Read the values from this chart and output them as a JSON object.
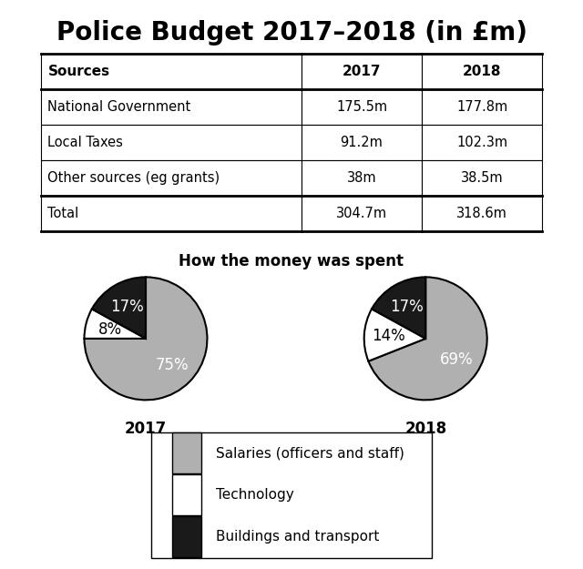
{
  "title": "Police Budget 2017–2018 (in £m)",
  "table": {
    "headers": [
      "Sources",
      "2017",
      "2018"
    ],
    "rows": [
      [
        "National Government",
        "175.5m",
        "177.8m"
      ],
      [
        "Local Taxes",
        "91.2m",
        "102.3m"
      ],
      [
        "Other sources (eg grants)",
        "38m",
        "38.5m"
      ],
      [
        "Total",
        "304.7m",
        "318.6m"
      ]
    ]
  },
  "pie_subtitle": "How the money was spent",
  "pie_2017": {
    "label": "2017",
    "values": [
      75,
      8,
      17
    ],
    "colors": [
      "#b0b0b0",
      "#ffffff",
      "#1a1a1a"
    ],
    "pct_labels": [
      "75%",
      "8%",
      "17%"
    ],
    "pct_colors": [
      "white",
      "black",
      "white"
    ],
    "startangle": 90
  },
  "pie_2018": {
    "label": "2018",
    "values": [
      69,
      14,
      17
    ],
    "colors": [
      "#b0b0b0",
      "#ffffff",
      "#1a1a1a"
    ],
    "pct_labels": [
      "69%",
      "14%",
      "17%"
    ],
    "pct_colors": [
      "white",
      "black",
      "white"
    ],
    "startangle": 90
  },
  "legend_items": [
    {
      "label": "Salaries (officers and staff)",
      "color": "#b0b0b0"
    },
    {
      "label": "Technology",
      "color": "#ffffff"
    },
    {
      "label": "Buildings and transport",
      "color": "#1a1a1a"
    }
  ],
  "background_color": "#ffffff",
  "text_color": "#000000",
  "title_fontsize": 20,
  "table_header_fontsize": 11,
  "table_body_fontsize": 10.5,
  "pie_label_fontsize": 12,
  "pie_year_fontsize": 12,
  "subtitle_fontsize": 12,
  "legend_fontsize": 11
}
